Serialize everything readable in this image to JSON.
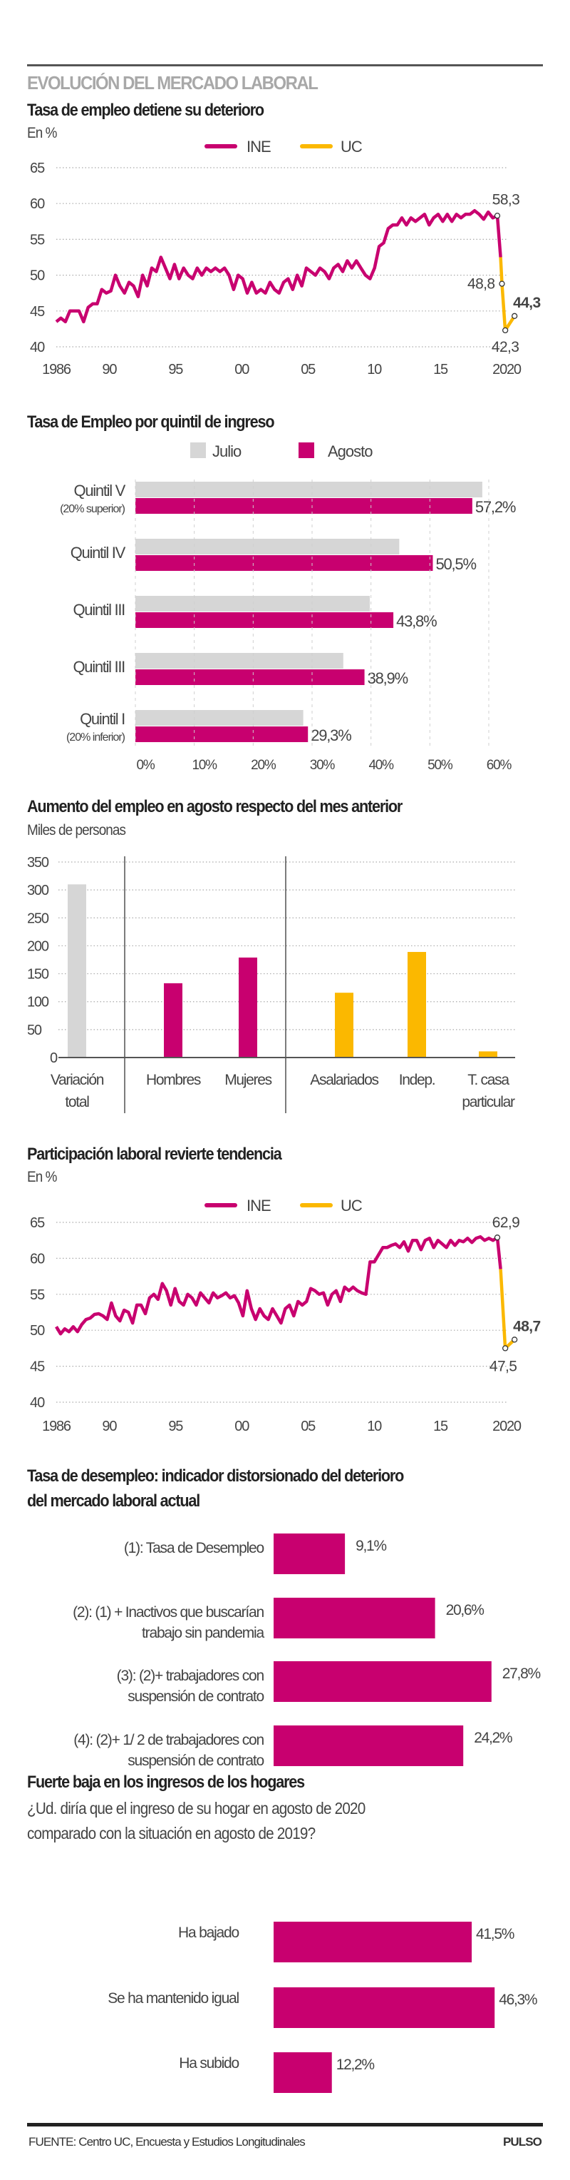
{
  "colors": {
    "ine": "#c8006f",
    "uc": "#fbb800",
    "julio": "#d6d6d6",
    "agosto": "#c8006f",
    "total": "#d6d6d6"
  },
  "header": {
    "kicker": "EVOLUCIÓN DEL MERCADO LABORAL"
  },
  "chart_data": [
    {
      "type": "line",
      "title": "Tasa de empleo detiene su deterioro",
      "subtitle": "En %",
      "legend": [
        "INE",
        "UC"
      ],
      "legend_position": "top-center",
      "ylim": [
        40,
        65
      ],
      "yticks": [
        "65",
        "60",
        "55",
        "50",
        "45",
        "40"
      ],
      "ytick_values": [
        65,
        60,
        55,
        50,
        45,
        40
      ],
      "xlim": [
        1986,
        2020
      ],
      "xticks": [
        "1986",
        "90",
        "95",
        "00",
        "05",
        "10",
        "15",
        "2020"
      ],
      "xtick_values": [
        1986,
        1990,
        1995,
        2000,
        2005,
        2010,
        2015,
        2020
      ],
      "grid": true,
      "series": [
        {
          "name": "INE",
          "x_start": 1986,
          "x_end": 2019.3,
          "values": [
            43.5,
            44,
            43.5,
            45,
            45,
            45,
            43.5,
            45.5,
            46,
            46,
            48,
            47.5,
            47.8,
            50,
            48.5,
            47.5,
            49,
            48.5,
            47,
            50,
            48.5,
            51,
            50.5,
            52.5,
            51,
            49.5,
            51.5,
            49.5,
            51,
            50,
            49.5,
            51,
            50,
            51,
            50.5,
            51,
            50.5,
            51,
            50,
            48,
            50,
            49.5,
            47.5,
            49,
            47.5,
            48,
            47.5,
            49,
            48,
            47.5,
            49,
            49.5,
            48,
            50,
            48.5,
            51,
            50.5,
            50,
            51,
            50.5,
            49.5,
            51,
            51.5,
            50.5,
            52,
            51,
            52,
            51,
            50,
            49.5,
            51,
            54,
            54.5,
            56.5,
            57,
            57,
            58,
            57,
            58,
            57.5,
            58,
            58.5,
            57,
            58,
            58.5,
            57.5,
            58.5,
            57.5,
            58.5,
            58,
            58.5,
            58.5,
            59,
            58.5,
            57.8,
            58.8,
            58,
            58.3
          ]
        },
        {
          "name": "UC",
          "x": [
            2019.3,
            2019.55,
            2019.65,
            2019.9,
            2020.6
          ],
          "values": [
            58.3,
            52.5,
            48.8,
            42.3,
            44.3
          ]
        }
      ],
      "annotations": [
        {
          "text": "58,3",
          "x": 2019.3,
          "y": 58.3,
          "bold": false
        },
        {
          "text": "48,8",
          "x": 2019.65,
          "y": 48.8,
          "bold": false
        },
        {
          "text": "42,3",
          "x": 2019.9,
          "y": 42.3,
          "bold": false
        },
        {
          "text": "44,3",
          "x": 2020.6,
          "y": 44.3,
          "bold": true
        }
      ]
    },
    {
      "type": "bar",
      "orientation": "horizontal",
      "title": "Tasa de Empleo por quintil de ingreso",
      "legend": [
        "Julio",
        "Agosto"
      ],
      "legend_position": "top-center",
      "categories": [
        {
          "label": "Quintil V",
          "note": "(20% superior)"
        },
        {
          "label": "Quintil IV",
          "note": ""
        },
        {
          "label": "Quintil III",
          "note": ""
        },
        {
          "label": "Quintil III",
          "note": ""
        },
        {
          "label": "Quintil I",
          "note": "(20% inferior)"
        }
      ],
      "series": [
        {
          "name": "Julio",
          "values": [
            58.9,
            44.8,
            39.8,
            35.3,
            28.5
          ]
        },
        {
          "name": "Agosto",
          "values": [
            57.2,
            50.5,
            43.8,
            38.9,
            29.3
          ]
        }
      ],
      "data_labels": [
        "57,2%",
        "50,5%",
        "43,8%",
        "38,9%",
        "29,3%"
      ],
      "xlim": [
        0,
        60
      ],
      "xticks": [
        "0%",
        "10%",
        "20%",
        "30%",
        "40%",
        "50%",
        "60%"
      ],
      "xtick_values": [
        0,
        10,
        20,
        30,
        40,
        50,
        60
      ],
      "grid": true
    },
    {
      "type": "bar",
      "orientation": "vertical",
      "title": "Aumento del empleo en agosto respecto del mes anterior",
      "subtitle": "Miles de personas",
      "ylim": [
        0,
        350
      ],
      "yticks": [
        "350",
        "300",
        "250",
        "200",
        "150",
        "100",
        "50",
        "0"
      ],
      "ytick_values": [
        350,
        300,
        250,
        200,
        150,
        100,
        50,
        0
      ],
      "grid": true,
      "categories": [
        {
          "label": [
            "Variación",
            "total"
          ],
          "value": 310,
          "group": "total"
        },
        {
          "label": [
            "Hombres"
          ],
          "value": 133,
          "group": "ine"
        },
        {
          "label": [
            "Mujeres"
          ],
          "value": 179,
          "group": "ine"
        },
        {
          "label": [
            "Asalariados"
          ],
          "value": 116,
          "group": "uc"
        },
        {
          "label": [
            "Indep."
          ],
          "value": 189,
          "group": "uc"
        },
        {
          "label": [
            "T. casa",
            "particular"
          ],
          "value": 11,
          "group": "uc"
        }
      ]
    },
    {
      "type": "line",
      "title": "Participación laboral revierte tendencia",
      "subtitle": "En %",
      "legend": [
        "INE",
        "UC"
      ],
      "legend_position": "top-center",
      "ylim": [
        40,
        65
      ],
      "yticks": [
        "65",
        "60",
        "55",
        "50",
        "45",
        "40"
      ],
      "ytick_values": [
        65,
        60,
        55,
        50,
        45,
        40
      ],
      "xlim": [
        1986,
        2020
      ],
      "xticks": [
        "1986",
        "90",
        "95",
        "00",
        "05",
        "10",
        "15",
        "2020"
      ],
      "xtick_values": [
        1986,
        1990,
        1995,
        2000,
        2005,
        2010,
        2015,
        2020
      ],
      "grid": true,
      "series": [
        {
          "name": "INE",
          "x_start": 1986,
          "x_end": 2019.3,
          "values": [
            50.5,
            49.5,
            50.2,
            49.8,
            50.5,
            49.8,
            50.8,
            51.5,
            51.7,
            52.2,
            52.3,
            52,
            51.5,
            53.8,
            52,
            51.3,
            52.8,
            52.5,
            51,
            53.5,
            53.5,
            52.3,
            54.5,
            55,
            54.3,
            56.5,
            55.5,
            53.5,
            55.8,
            54,
            53.5,
            55,
            54.5,
            53.5,
            55.2,
            54.5,
            53.8,
            55.2,
            54.5,
            54.8,
            55.2,
            54.5,
            54.8,
            53.8,
            52,
            55.5,
            53,
            51.5,
            53,
            52,
            51.5,
            53,
            52,
            51,
            53,
            53.5,
            52,
            54,
            53.5,
            54,
            55.8,
            55.5,
            55,
            55.2,
            53.5,
            55,
            55.5,
            54,
            56,
            55.5,
            56,
            55.5,
            55.2,
            55,
            59.5,
            59.5,
            60.5,
            61.5,
            61.5,
            61.8,
            62,
            61.5,
            62.3,
            61,
            62.5,
            62.5,
            61.2,
            62.5,
            62.8,
            61.5,
            62.5,
            62,
            61.5,
            62.5,
            61.8,
            62.5,
            62.3,
            62.8,
            62.2,
            62.8,
            63,
            62.5,
            62.8,
            62.5,
            62.9
          ]
        },
        {
          "name": "UC",
          "x": [
            2019.3,
            2019.55,
            2019.9,
            2020.6
          ],
          "values": [
            62.9,
            58.5,
            47.5,
            48.7
          ]
        }
      ],
      "annotations": [
        {
          "text": "62,9",
          "x": 2019.3,
          "y": 62.9,
          "bold": false
        },
        {
          "text": "47,5",
          "x": 2019.9,
          "y": 47.5,
          "bold": false
        },
        {
          "text": "48,7",
          "x": 2020.6,
          "y": 48.7,
          "bold": true
        }
      ]
    },
    {
      "type": "bar",
      "orientation": "horizontal",
      "title": [
        "Tasa de desempleo: indicador distorsionado del deterioro",
        "del mercado laboral actual"
      ],
      "categories": [
        [
          "(1): Tasa de Desempleo"
        ],
        [
          "(2): (1) + Inactivos que buscarían",
          "trabajo sin pandemia"
        ],
        [
          "(3): (2)+ trabajadores con",
          "suspensión de contrato"
        ],
        [
          "(4): (2)+ 1/ 2 de trabajadores con",
          "suspensión de contrato"
        ]
      ],
      "values": [
        9.1,
        20.6,
        27.8,
        24.2
      ],
      "data_labels": [
        "9,1%",
        "20,6%",
        "27,8%",
        "24,2%"
      ]
    },
    {
      "type": "bar",
      "orientation": "horizontal",
      "title": "Fuerte baja en los ingresos de los hogares",
      "subtitle": [
        "¿Ud. diría que el ingreso de su hogar en agosto de 2020",
        "comparado con la situación en agosto de 2019?"
      ],
      "categories": [
        "Ha bajado",
        "Se ha mantenido igual",
        "Ha subido"
      ],
      "values": [
        41.5,
        46.3,
        12.2
      ],
      "data_labels": [
        "41,5%",
        "46,3%",
        "12,2%"
      ]
    }
  ],
  "footer": {
    "source": "FUENTE: Centro UC, Encuesta y Estudios  Longitudinales",
    "brand": "PULSO"
  }
}
